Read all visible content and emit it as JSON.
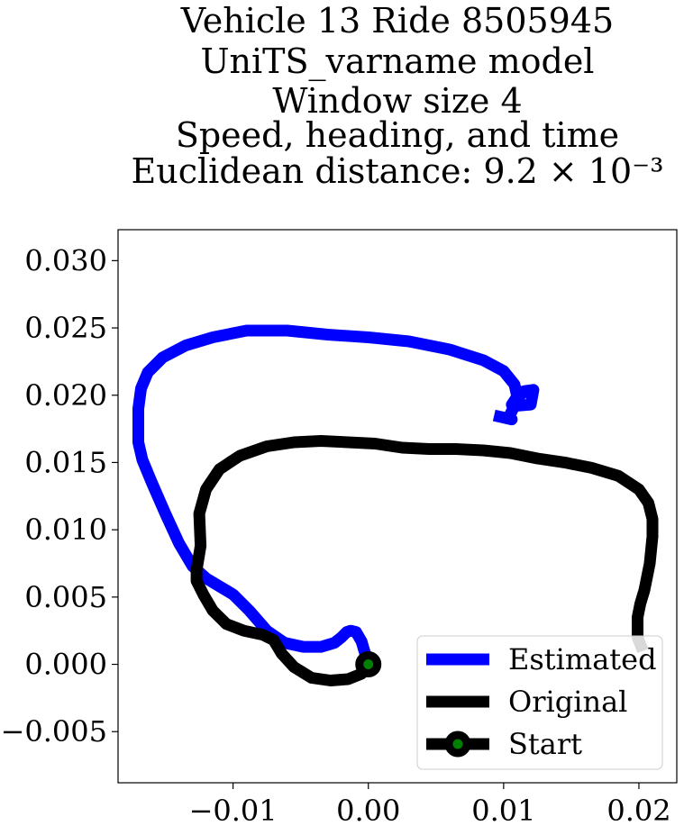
{
  "chart_data": {
    "type": "line",
    "title_lines": [
      "Vehicle 13 Ride 8505945",
      "UniTS_varname model",
      "Window size 4",
      "Speed, heading, and time",
      "Euclidean distance: 9.2 × 10⁻³"
    ],
    "xlabel": "",
    "ylabel": "",
    "xlim": [
      -0.0185,
      0.0228
    ],
    "ylim": [
      -0.0088,
      0.0323
    ],
    "x_ticks": [
      -0.01,
      0.0,
      0.01,
      0.02
    ],
    "x_tick_labels": [
      "−0.01",
      "0.00",
      "0.01",
      "0.02"
    ],
    "y_ticks": [
      -0.005,
      0.0,
      0.005,
      0.01,
      0.015,
      0.02,
      0.025,
      0.03
    ],
    "y_tick_labels": [
      "−0.005",
      "0.000",
      "0.005",
      "0.010",
      "0.015",
      "0.020",
      "0.025",
      "0.030"
    ],
    "grid": false,
    "legend_position": "lower-right",
    "series": [
      {
        "name": "Estimated",
        "color": "#0000ff",
        "x": [
          0.0,
          -0.0005,
          -0.0009,
          -0.0013,
          -0.0016,
          -0.002,
          -0.0025,
          -0.0035,
          -0.0048,
          -0.0062,
          -0.0075,
          -0.0088,
          -0.01,
          -0.011,
          -0.012,
          -0.013,
          -0.014,
          -0.015,
          -0.016,
          -0.0167,
          -0.017,
          -0.017,
          -0.0168,
          -0.0163,
          -0.0152,
          -0.0135,
          -0.0115,
          -0.009,
          -0.006,
          -0.003,
          0.0,
          0.003,
          0.006,
          0.0085,
          0.01,
          0.0108,
          0.011,
          0.0106,
          0.0115,
          0.0122,
          0.012,
          0.0108,
          0.0104,
          0.0106,
          0.0093
        ],
        "y": [
          0.0,
          0.0017,
          0.0024,
          0.0025,
          0.0024,
          0.002,
          0.0016,
          0.0013,
          0.0013,
          0.0016,
          0.0025,
          0.004,
          0.0052,
          0.0058,
          0.0064,
          0.0073,
          0.009,
          0.0112,
          0.0135,
          0.0152,
          0.0165,
          0.019,
          0.0205,
          0.0217,
          0.0228,
          0.0237,
          0.0243,
          0.0248,
          0.0248,
          0.0245,
          0.0243,
          0.024,
          0.0234,
          0.0226,
          0.0218,
          0.0208,
          0.0199,
          0.0193,
          0.0203,
          0.0204,
          0.0193,
          0.0192,
          0.0184,
          0.0182,
          0.0185
        ]
      },
      {
        "name": "Original",
        "color": "#000000",
        "x": [
          0.0,
          -0.0005,
          -0.0015,
          -0.0028,
          -0.0042,
          -0.0055,
          -0.0064,
          -0.007,
          -0.0078,
          -0.0092,
          -0.0105,
          -0.0115,
          -0.0122,
          -0.0127,
          -0.0127,
          -0.0124,
          -0.0125,
          -0.012,
          -0.011,
          -0.0095,
          -0.0075,
          -0.0055,
          -0.0035,
          -0.0015,
          0.0005,
          0.0025,
          0.0045,
          0.0065,
          0.0085,
          0.0105,
          0.0125,
          0.0145,
          0.0165,
          0.0185,
          0.02,
          0.0207,
          0.021,
          0.021,
          0.0208,
          0.0204,
          0.0201,
          0.0199,
          0.0199,
          0.0203
        ],
        "y": [
          0.0,
          -0.0007,
          -0.0011,
          -0.0012,
          -0.001,
          -0.0002,
          0.0008,
          0.0018,
          0.0022,
          0.0025,
          0.003,
          0.004,
          0.0052,
          0.0062,
          0.007,
          0.0088,
          0.0112,
          0.013,
          0.0145,
          0.0155,
          0.0162,
          0.0165,
          0.0166,
          0.0165,
          0.0164,
          0.0161,
          0.016,
          0.016,
          0.0159,
          0.0157,
          0.0153,
          0.015,
          0.0146,
          0.014,
          0.013,
          0.012,
          0.0108,
          0.0095,
          0.0075,
          0.0055,
          0.0045,
          0.0035,
          0.002,
          0.001
        ]
      }
    ],
    "start_point": {
      "name": "Start",
      "x": 0.0,
      "y": 0.0,
      "marker_color": "#008000",
      "edge_color": "#000000"
    }
  }
}
